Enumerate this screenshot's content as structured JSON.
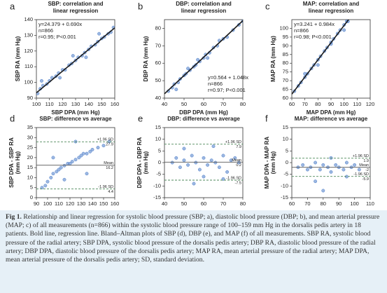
{
  "chart_data": [
    {
      "type": "scatter",
      "label": "a",
      "title": [
        "SBP: correlation and",
        "linear regression"
      ],
      "x_label": "SBP DPA (mm Hg)",
      "y_label": [
        "SBP RA (mm Hg)"
      ],
      "xlim": [
        100,
        160
      ],
      "ylim": [
        90,
        140
      ],
      "xticks": [
        100,
        110,
        120,
        130,
        140,
        150,
        160
      ],
      "yticks": [
        90,
        100,
        110,
        120,
        130,
        140
      ],
      "color": "#4a7cc9",
      "x": [
        101,
        103,
        105,
        108,
        110,
        112,
        115,
        117,
        120,
        122,
        125,
        127,
        130,
        132,
        135,
        137,
        140,
        142,
        145,
        147,
        150,
        152,
        155,
        157,
        159,
        104,
        118,
        128,
        138,
        148
      ],
      "values": [
        93,
        96,
        98,
        99,
        101,
        103,
        104,
        106,
        108,
        108,
        111,
        112,
        114,
        116,
        117,
        119,
        121,
        123,
        124,
        126,
        128,
        129,
        131,
        132,
        135,
        101,
        103,
        117,
        116,
        131
      ],
      "regression": {
        "intercept": 24.379,
        "slope": 0.69
      },
      "annotation_corner": "upper left",
      "annotation": [
        "y=24.379 + 0.690x",
        "n=866",
        "r=0.95; P<0.001"
      ]
    },
    {
      "type": "scatter",
      "label": "b",
      "title": [
        "DBP: correlation and",
        "linear regression"
      ],
      "x_label": "DBP DPA (mm Hg)",
      "y_label": [
        "DBP RA (mm Hg)"
      ],
      "xlim": [
        40,
        80
      ],
      "ylim": [
        40,
        85
      ],
      "xticks": [
        40,
        50,
        60,
        70,
        80
      ],
      "yticks": [
        40,
        50,
        60,
        70,
        80
      ],
      "color": "#4a7cc9",
      "x": [
        42,
        44,
        45,
        47,
        48,
        50,
        51,
        53,
        55,
        56,
        58,
        60,
        61,
        63,
        65,
        67,
        70,
        72,
        75,
        78,
        80,
        46,
        52,
        57,
        62,
        68
      ],
      "values": [
        44,
        46,
        48,
        49,
        51,
        53,
        54,
        56,
        58,
        59,
        61,
        63,
        65,
        66,
        69,
        70,
        74,
        75,
        79,
        82,
        84,
        45,
        57,
        62,
        63,
        73
      ],
      "regression": {
        "intercept": 0.564,
        "slope": 1.048
      },
      "annotation_corner": "lower right",
      "annotation": [
        "y=0.564 + 1.048x",
        "n=866",
        "r=0.97; P<0.001"
      ]
    },
    {
      "type": "scatter",
      "label": "c",
      "title": [
        "MAP: correlation and",
        "linear regression"
      ],
      "x_label": "MAP DPA (mm Hg)",
      "y_label": [
        "MAP RA (mm Hg)"
      ],
      "xlim": [
        60,
        120
      ],
      "ylim": [
        60,
        105
      ],
      "xticks": [
        60,
        70,
        80,
        90,
        100,
        110,
        120
      ],
      "yticks": [
        60,
        65,
        70,
        75,
        80,
        85,
        90,
        95,
        100
      ],
      "color": "#4a7cc9",
      "x": [
        62,
        65,
        67,
        70,
        72,
        75,
        77,
        80,
        82,
        85,
        87,
        90,
        92,
        95,
        97,
        100,
        102,
        103,
        70,
        80,
        90,
        100
      ],
      "values": [
        64,
        67,
        69,
        72,
        74,
        77,
        79,
        82,
        84,
        87,
        89,
        92,
        94,
        97,
        99,
        102,
        104,
        104,
        74,
        79,
        91,
        99
      ],
      "regression": {
        "intercept": 3.241,
        "slope": 0.984
      },
      "annotation_corner": "upper left",
      "annotation": [
        "y=3.241 + 0.984x",
        "n=866",
        "r=0.98; P<0.001"
      ]
    },
    {
      "type": "scatter",
      "label": "d",
      "title": [
        "SBP: difference vs average"
      ],
      "x_label": "(SBP DPA + SBP RA)/2 (mm Hg)",
      "y_label": [
        "SBP DPA - SBP RA",
        "(mm Hg)"
      ],
      "xlim": [
        90,
        160
      ],
      "ylim": [
        0,
        35
      ],
      "xticks": [
        90,
        100,
        110,
        120,
        130,
        140,
        150,
        160
      ],
      "yticks": [
        0,
        5,
        10,
        15,
        20,
        25,
        30,
        35
      ],
      "color": "#4a7cc9",
      "x": [
        95,
        98,
        100,
        103,
        105,
        108,
        110,
        112,
        115,
        118,
        120,
        122,
        125,
        128,
        130,
        132,
        135,
        138,
        140,
        145,
        150,
        155,
        105,
        115,
        125,
        135
      ],
      "values": [
        5,
        6,
        8,
        10,
        12,
        13,
        14,
        15,
        16,
        17,
        17,
        18,
        19,
        20,
        21,
        22,
        22,
        23,
        24,
        25,
        26,
        28,
        20,
        9,
        28,
        12
      ],
      "hlines": [
        {
          "label": "+1.96 SD",
          "value": 27.9,
          "style": "dashed"
        },
        {
          "label": "Mean",
          "value": 16.2,
          "style": "solid"
        },
        {
          "label": "-1.96 SD",
          "value": 4.4,
          "style": "dashed"
        }
      ]
    },
    {
      "type": "scatter",
      "label": "e",
      "title": [
        "DBP: difference vs average"
      ],
      "x_label": "(DBP DPA + DBP RA)/2 (mm Hg)",
      "y_label": [
        "DBP DPA - DBP RA",
        "(mm Hg)"
      ],
      "xlim": [
        40,
        80
      ],
      "ylim": [
        -15,
        15
      ],
      "xticks": [
        40,
        50,
        60,
        70,
        80
      ],
      "yticks": [
        -15,
        -10,
        -5,
        0,
        5,
        10,
        15
      ],
      "color": "#4a7cc9",
      "x": [
        44,
        46,
        48,
        50,
        52,
        54,
        56,
        58,
        60,
        62,
        64,
        66,
        68,
        70,
        72,
        74,
        76,
        78,
        50,
        60,
        70,
        55,
        65
      ],
      "values": [
        0,
        2,
        -2,
        1,
        -1,
        3,
        0,
        -3,
        2,
        -1,
        1,
        0,
        -2,
        3,
        -4,
        1,
        2,
        0,
        6,
        -6,
        -7,
        -9,
        7
      ],
      "hlines": [
        {
          "label": "+1.96 SD",
          "value": 7.9,
          "style": "dashed"
        },
        {
          "label": "Mean",
          "value": 0.2,
          "style": "solid"
        },
        {
          "label": "-1.96 SD",
          "value": -7.5,
          "style": "dashed"
        }
      ]
    },
    {
      "type": "scatter",
      "label": "f",
      "title": [
        "MAP: difference vs average"
      ],
      "x_label": "(MAP DPA + MAP RA)/2 (mm Hg)",
      "y_label": [
        "MAP DPA - MAP RA",
        "(mm Hg)"
      ],
      "xlim": [
        60,
        110
      ],
      "ylim": [
        -15,
        15
      ],
      "xticks": [
        60,
        70,
        80,
        90,
        100,
        110
      ],
      "yticks": [
        -15,
        -10,
        -5,
        0,
        5,
        10,
        15
      ],
      "color": "#4a7cc9",
      "x": [
        64,
        67,
        70,
        72,
        75,
        78,
        80,
        83,
        85,
        88,
        90,
        93,
        95,
        98,
        100,
        103,
        75,
        85,
        95,
        80
      ],
      "values": [
        -2,
        -1,
        -3,
        -2,
        0,
        -3,
        -1,
        -2,
        -4,
        -1,
        -2,
        -3,
        0,
        -2,
        -1,
        -3,
        -8,
        2,
        -6,
        -12
      ],
      "hlines": [
        {
          "label": "+1.96 SD",
          "value": 1.9,
          "style": "dashed"
        },
        {
          "label": "Mean",
          "value": -2.0,
          "style": "solid"
        },
        {
          "label": "-1.96 SD",
          "value": -5.9,
          "style": "dashed"
        }
      ]
    }
  ],
  "caption_label": "Fig 1.",
  "caption": "Relationship and linear regression for systolic blood pressure (SBP; a), diastolic blood pressure (DBP; b), and mean arterial pressure (MAP; c) of all measurements (n=866) within the systolic blood pressure range of 100–159 mm Hg in the dorsalis pedis artery in 18 patients. Bold line, regression line. Bland–Altman plots of SBP (d), DBP (e), and MAP (f) of all measurements. SBP RA, systolic blood pressure of the radial artery; SBP DPA, systolic blood pressure of the dorsalis pedis artery; DBP RA, diastolic blood pressure of the radial artery; DBP DPA, diastolic blood pressure of the dorsalis pedis artery; MAP RA, mean arterial pressure of the radial artery; MAP DPA, mean arterial pressure of the dorsalis pedis artery; SD, standard deviation."
}
